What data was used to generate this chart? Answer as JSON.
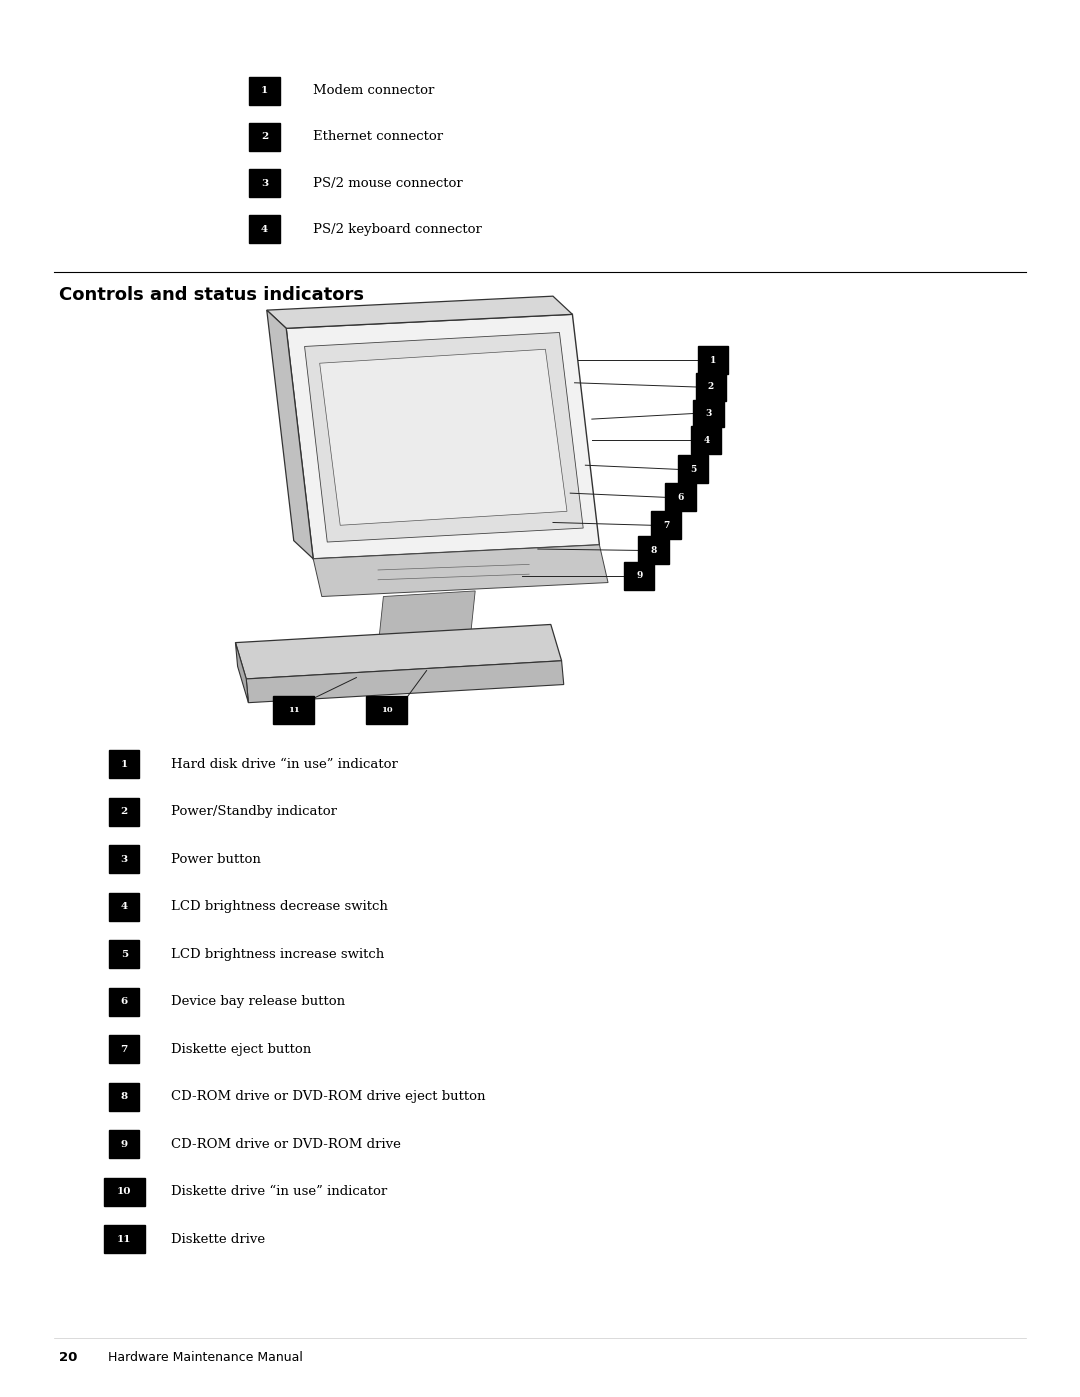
{
  "bg_color": "#ffffff",
  "page_width": 10.8,
  "page_height": 13.97,
  "top_items": [
    {
      "num": "1",
      "text": "Modem connector"
    },
    {
      "num": "2",
      "text": "Ethernet connector"
    },
    {
      "num": "3",
      "text": "PS/2 mouse connector"
    },
    {
      "num": "4",
      "text": "PS/2 keyboard connector"
    }
  ],
  "section_title": "Controls and status indicators",
  "bottom_items": [
    {
      "num": "1",
      "text": "Hard disk drive “in use” indicator"
    },
    {
      "num": "2",
      "text": "Power/Standby indicator"
    },
    {
      "num": "3",
      "text": "Power button"
    },
    {
      "num": "4",
      "text": "LCD brightness decrease switch"
    },
    {
      "num": "5",
      "text": "LCD brightness increase switch"
    },
    {
      "num": "6",
      "text": "Device bay release button"
    },
    {
      "num": "7",
      "text": "Diskette eject button"
    },
    {
      "num": "8",
      "text": "CD-ROM drive or DVD-ROM drive eject button"
    },
    {
      "num": "9",
      "text": "CD-ROM drive or DVD-ROM drive"
    },
    {
      "num": "10",
      "text": "Diskette drive “in use” indicator"
    },
    {
      "num": "11",
      "text": "Diskette drive"
    }
  ],
  "label_bg": "#000000",
  "label_fg": "#ffffff",
  "text_color": "#000000",
  "title_color": "#000000"
}
